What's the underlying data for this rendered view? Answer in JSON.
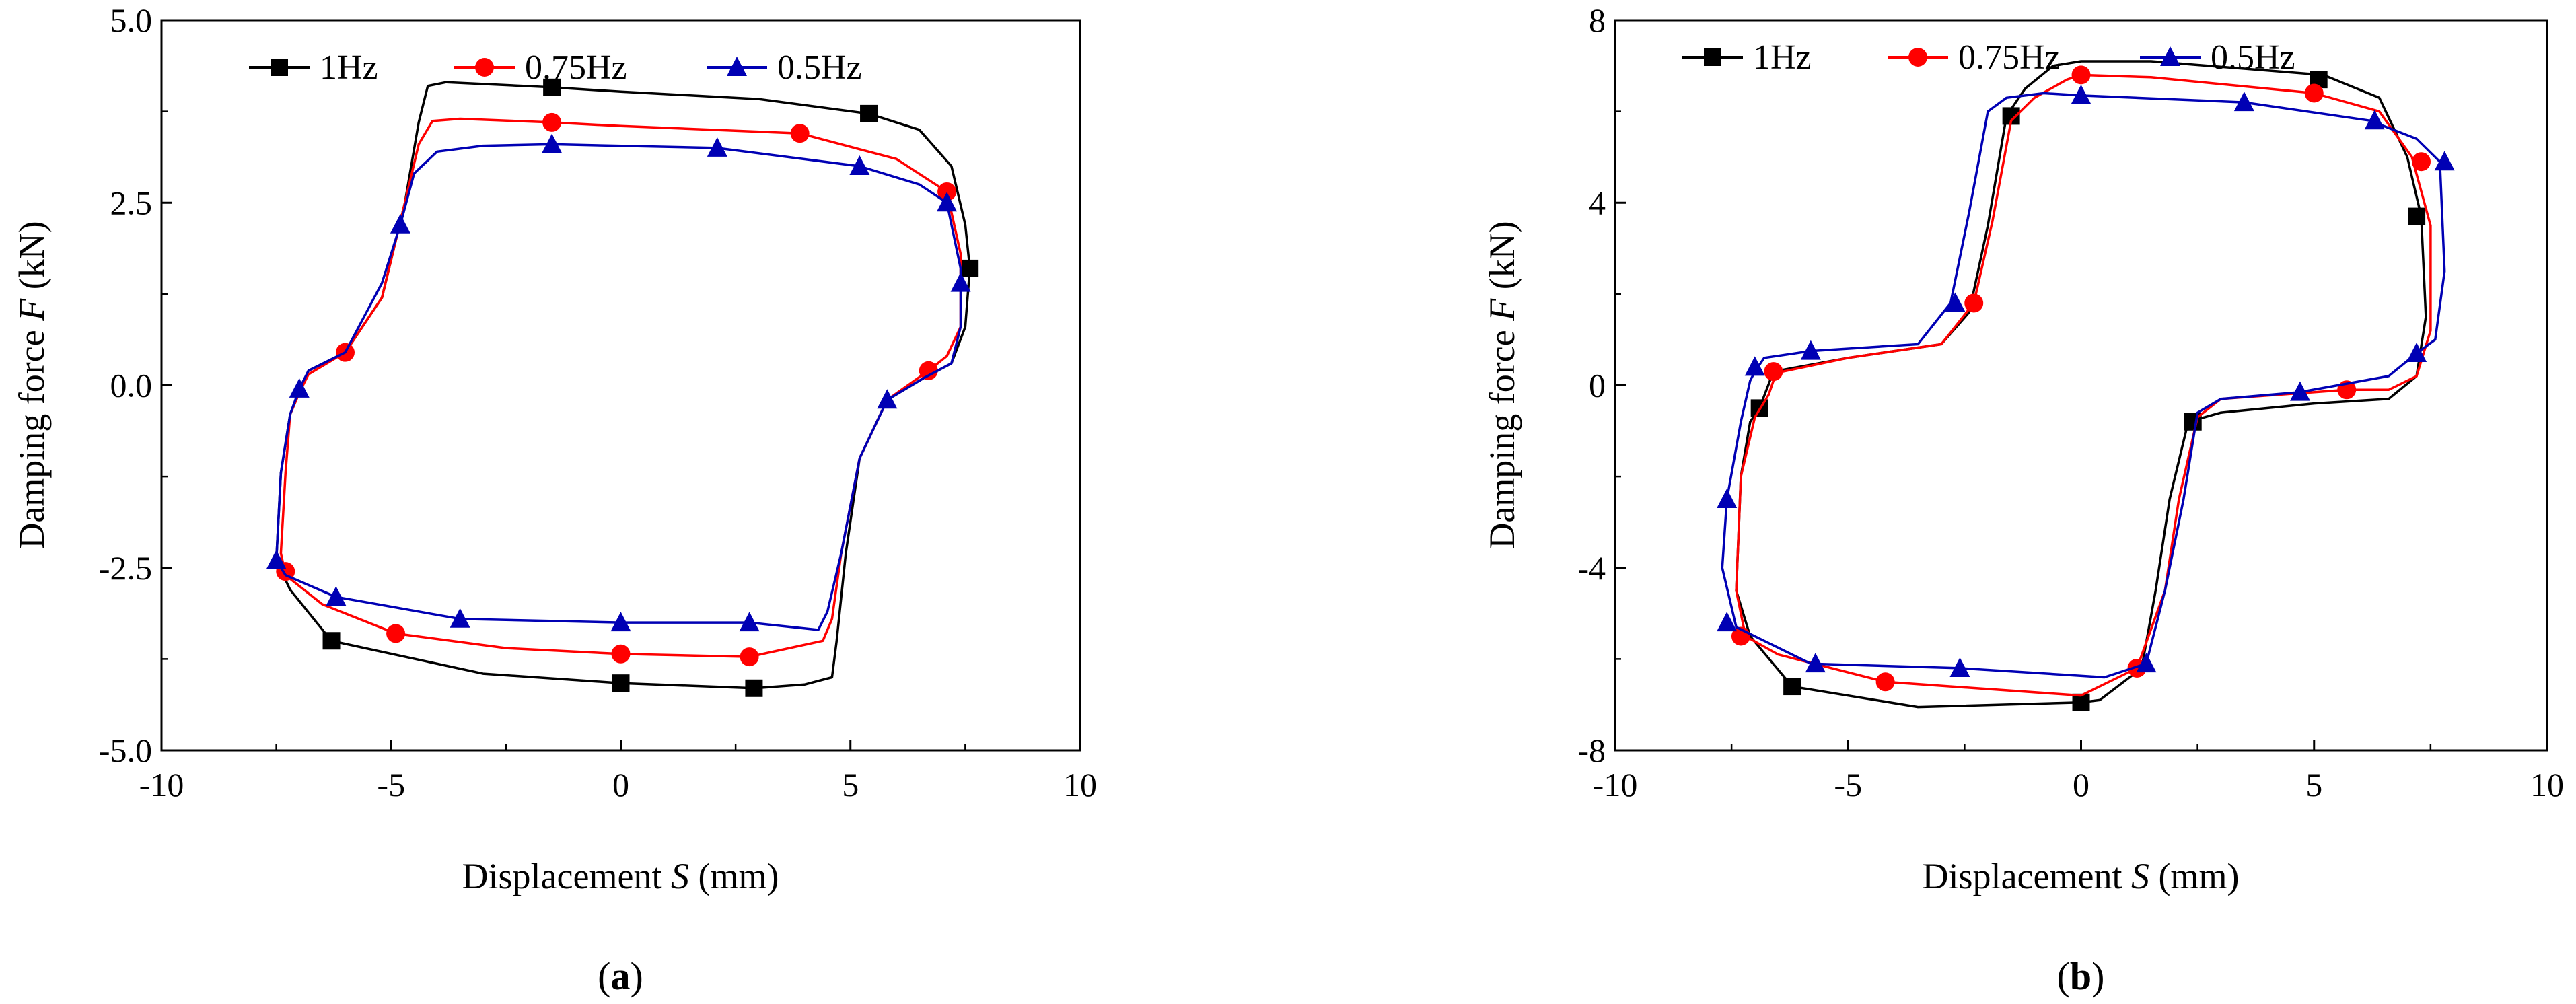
{
  "chart_data": [
    {
      "type": "line",
      "panel": "a",
      "caption_letter": "a",
      "xlabel_prefix": "Displacement ",
      "xlabel_var": "S",
      "xlabel_unit": " (mm)",
      "ylabel_prefix": "Damping force ",
      "ylabel_var": "F",
      "ylabel_unit": " (kN)",
      "xlim": [
        -10,
        10
      ],
      "ylim": [
        -5,
        5
      ],
      "xticks": [
        -10,
        -5,
        0,
        5,
        10
      ],
      "xtick_labels": [
        "-10",
        "-5",
        "0",
        "5",
        "10"
      ],
      "yticks": [
        -5,
        -2.5,
        0,
        2.5,
        5
      ],
      "ytick_labels": [
        "-5.0",
        "-2.5",
        "0.0",
        "2.5",
        "5.0"
      ],
      "legend_position": "top-left",
      "series": [
        {
          "name": "1Hz",
          "color": "#000000",
          "marker": "square",
          "x": [
            -7.0,
            -6.8,
            -6.0,
            -5.2,
            -4.7,
            -4.4,
            -4.2,
            -3.8,
            -1.5,
            0,
            3.0,
            5.4,
            6.5,
            7.2,
            7.5,
            7.6,
            7.5,
            7.2,
            6.6,
            5.8,
            5.2,
            4.9,
            4.7,
            4.6,
            4.0,
            2.9,
            0,
            -3.0,
            -6.3,
            -7.2,
            -7.5,
            -7.4,
            -7.2,
            -7.0
          ],
          "y": [
            -0.1,
            0.2,
            0.45,
            1.2,
            2.5,
            3.6,
            4.1,
            4.15,
            4.08,
            4.02,
            3.92,
            3.72,
            3.5,
            3.0,
            2.2,
            1.6,
            0.8,
            0.3,
            0.1,
            -0.2,
            -1.0,
            -2.3,
            -3.5,
            -4.0,
            -4.1,
            -4.15,
            -4.08,
            -3.95,
            -3.5,
            -2.8,
            -2.4,
            -1.2,
            -0.4,
            -0.1
          ],
          "marker_x": [
            -1.5,
            5.4,
            7.6,
            -6.3,
            0,
            2.9
          ],
          "marker_y": [
            4.08,
            3.72,
            1.6,
            -3.5,
            -4.08,
            -4.15
          ]
        },
        {
          "name": "0.75Hz",
          "color": "#ff0000",
          "marker": "circle",
          "x": [
            -7.0,
            -6.8,
            -6.0,
            -5.2,
            -4.7,
            -4.4,
            -4.1,
            -3.5,
            -1.5,
            0,
            3.9,
            6.0,
            7.1,
            7.4,
            7.4,
            7.1,
            6.7,
            5.8,
            5.2,
            4.8,
            4.6,
            4.4,
            2.8,
            0,
            -2.5,
            -4.9,
            -6.5,
            -7.3,
            -7.4,
            -7.3,
            -7.2,
            -7.0
          ],
          "y": [
            -0.1,
            0.15,
            0.45,
            1.2,
            2.5,
            3.3,
            3.62,
            3.65,
            3.6,
            3.55,
            3.45,
            3.1,
            2.65,
            1.8,
            0.8,
            0.4,
            0.2,
            -0.2,
            -1.0,
            -2.3,
            -3.2,
            -3.5,
            -3.72,
            -3.68,
            -3.6,
            -3.4,
            -3.0,
            -2.6,
            -2.3,
            -1.2,
            -0.4,
            -0.1
          ],
          "marker_x": [
            -1.5,
            3.9,
            7.1,
            6.7,
            -6.0,
            -7.3,
            -4.9,
            0,
            2.8
          ],
          "marker_y": [
            3.6,
            3.45,
            2.65,
            0.2,
            0.45,
            -2.55,
            -3.4,
            -3.68,
            -3.72
          ]
        },
        {
          "name": "0.5Hz",
          "color": "#0000b4",
          "marker": "triangle",
          "x": [
            -7.0,
            -6.8,
            -6.0,
            -5.2,
            -4.8,
            -4.5,
            -4.0,
            -3.0,
            -1.5,
            2.1,
            5.2,
            6.5,
            7.1,
            7.4,
            7.4,
            7.2,
            6.6,
            5.8,
            5.2,
            4.8,
            4.5,
            4.3,
            2.8,
            0,
            -3.5,
            -6.2,
            -7.3,
            -7.5,
            -7.4,
            -7.2,
            -7.0
          ],
          "y": [
            -0.05,
            0.2,
            0.45,
            1.4,
            2.2,
            2.9,
            3.2,
            3.28,
            3.3,
            3.25,
            3.0,
            2.75,
            2.5,
            1.6,
            0.8,
            0.3,
            0.1,
            -0.2,
            -1.0,
            -2.3,
            -3.1,
            -3.35,
            -3.25,
            -3.25,
            -3.2,
            -2.9,
            -2.6,
            -2.4,
            -1.2,
            -0.4,
            -0.05
          ],
          "marker_x": [
            -1.5,
            2.1,
            5.2,
            7.1,
            7.4,
            -4.8,
            -7.0,
            5.8,
            -7.5,
            -6.2,
            -3.5,
            0,
            2.8
          ],
          "marker_y": [
            3.3,
            3.25,
            3.0,
            2.5,
            1.4,
            2.2,
            -0.05,
            -0.2,
            -2.4,
            -2.9,
            -3.2,
            -3.25,
            -3.25
          ]
        }
      ]
    },
    {
      "type": "line",
      "panel": "b",
      "caption_letter": "b",
      "xlabel_prefix": "Displacement ",
      "xlabel_var": "S",
      "xlabel_unit": " (mm)",
      "ylabel_prefix": "Damping force ",
      "ylabel_var": "F",
      "ylabel_unit": " (kN)",
      "xlim": [
        -10,
        10
      ],
      "ylim": [
        -8,
        8
      ],
      "xticks": [
        -10,
        -5,
        0,
        5,
        10
      ],
      "xtick_labels": [
        "-10",
        "-5",
        "0",
        "5",
        "10"
      ],
      "yticks": [
        -8,
        -4,
        0,
        4,
        8
      ],
      "ytick_labels": [
        "-8",
        "-4",
        "0",
        "4",
        "8"
      ],
      "legend_position": "top-left",
      "series": [
        {
          "name": "1Hz",
          "color": "#000000",
          "marker": "square",
          "x": [
            -6.9,
            -6.6,
            -5.0,
            -3.0,
            -2.4,
            -2.0,
            -1.6,
            -1.2,
            -0.6,
            0,
            1.5,
            5.2,
            6.4,
            7.0,
            7.3,
            7.4,
            7.2,
            6.6,
            5.0,
            3.0,
            2.3,
            1.9,
            1.6,
            1.3,
            0.4,
            0,
            -3.5,
            -6.2,
            -7.1,
            -7.4,
            -7.3,
            -7.1,
            -6.9
          ],
          "y": [
            -0.5,
            0.3,
            0.6,
            0.9,
            1.6,
            3.5,
            5.9,
            6.5,
            7.0,
            7.1,
            7.1,
            6.8,
            6.3,
            5.0,
            3.7,
            1.5,
            0.2,
            -0.3,
            -0.4,
            -0.6,
            -0.8,
            -2.5,
            -4.5,
            -6.2,
            -6.9,
            -6.95,
            -7.05,
            -6.6,
            -5.5,
            -4.5,
            -2.0,
            -0.8,
            -0.5
          ],
          "marker_x": [
            -1.5,
            5.1,
            7.2,
            -6.9,
            2.4,
            -6.2,
            0
          ],
          "marker_y": [
            5.9,
            6.7,
            3.7,
            -0.5,
            -0.8,
            -6.6,
            -6.95
          ]
        },
        {
          "name": "0.75Hz",
          "color": "#ff0000",
          "marker": "circle",
          "x": [
            -6.6,
            -6.4,
            -5.0,
            -3.0,
            -2.3,
            -1.9,
            -1.5,
            -1.0,
            -0.3,
            0,
            1.5,
            5.0,
            6.4,
            7.1,
            7.5,
            7.5,
            7.2,
            6.6,
            5.7,
            3.0,
            2.5,
            2.1,
            1.8,
            1.2,
            0,
            -4.2,
            -6.5,
            -7.2,
            -7.4,
            -7.3,
            -7.0,
            -6.7,
            -6.6
          ],
          "y": [
            0.1,
            0.3,
            0.6,
            0.9,
            1.8,
            3.6,
            5.8,
            6.3,
            6.7,
            6.8,
            6.75,
            6.4,
            6.0,
            5.0,
            3.5,
            1.2,
            0.2,
            -0.1,
            -0.1,
            -0.3,
            -0.7,
            -2.5,
            -4.5,
            -6.2,
            -6.8,
            -6.5,
            -5.9,
            -5.5,
            -4.5,
            -2.0,
            -0.7,
            -0.2,
            0.1
          ],
          "marker_x": [
            0,
            5.0,
            7.3,
            5.7,
            -2.3,
            -6.6,
            -7.3,
            -4.2,
            1.2
          ],
          "marker_y": [
            6.8,
            6.4,
            4.9,
            -0.1,
            1.8,
            0.3,
            -5.5,
            -6.5,
            -6.2
          ]
        },
        {
          "name": "0.5Hz",
          "color": "#0000b4",
          "marker": "triangle",
          "x": [
            -7.0,
            -6.8,
            -5.8,
            -3.5,
            -2.8,
            -2.4,
            -2.0,
            -1.6,
            -0.8,
            0,
            3.5,
            6.2,
            7.2,
            7.7,
            7.8,
            7.6,
            7.2,
            6.6,
            4.7,
            3.0,
            2.5,
            2.2,
            1.8,
            1.4,
            0.5,
            -2.6,
            -5.8,
            -7.4,
            -7.7,
            -7.6,
            -7.3,
            -7.1,
            -7.0
          ],
          "y": [
            0.3,
            0.6,
            0.75,
            0.9,
            1.8,
            3.8,
            6.0,
            6.3,
            6.4,
            6.35,
            6.2,
            5.8,
            5.4,
            4.9,
            2.5,
            1.0,
            0.7,
            0.2,
            -0.15,
            -0.3,
            -0.6,
            -2.5,
            -4.5,
            -6.1,
            -6.4,
            -6.2,
            -6.1,
            -5.3,
            -4.0,
            -2.5,
            -0.8,
            0.1,
            0.3
          ],
          "marker_x": [
            0,
            3.5,
            6.3,
            7.8,
            7.2,
            -2.7,
            -5.8,
            -7.0,
            4.7,
            -7.6,
            -7.6,
            -5.7,
            -2.6,
            1.4
          ],
          "marker_y": [
            6.35,
            6.2,
            5.8,
            4.9,
            0.7,
            1.8,
            0.75,
            0.4,
            -0.15,
            -2.5,
            -5.2,
            -6.1,
            -6.2,
            -6.1
          ]
        }
      ]
    }
  ]
}
